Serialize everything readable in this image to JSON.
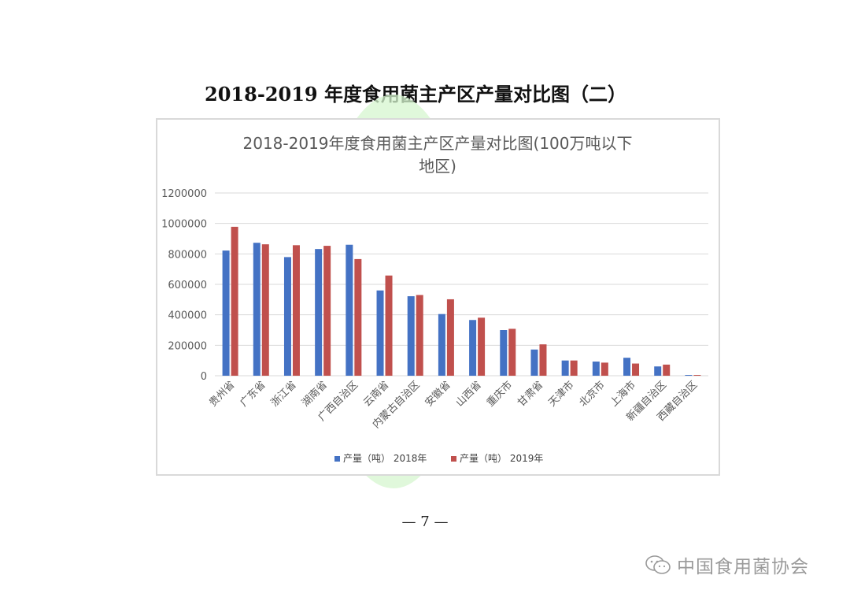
{
  "page": {
    "heading": "2018-2019 年度食用菌主产区产量对比图（二）",
    "page_number": "— 7 —",
    "brand": "中国食用菌协会"
  },
  "colors": {
    "series_2018": "#4472c4",
    "series_2019": "#c0504d",
    "grid": "#d9d9d9",
    "text": "#595959"
  },
  "chart_data": {
    "type": "bar",
    "title_line1": "2018-2019年度食用菌主产区产量对比图(100万吨以下",
    "title_line2": "地区)",
    "categories": [
      "贵州省",
      "广东省",
      "浙江省",
      "湖南省",
      "广西自治区",
      "云南省",
      "内蒙古自治区",
      "安徽省",
      "山西省",
      "重庆市",
      "甘肃省",
      "天津市",
      "北京市",
      "上海市",
      "新疆自治区",
      "西藏自治区"
    ],
    "series": [
      {
        "name": "产量（吨） 2018年",
        "values": [
          822000,
          873000,
          779000,
          832000,
          860000,
          560000,
          522000,
          405000,
          366000,
          300000,
          172000,
          100000,
          93000,
          118000,
          61000,
          5000
        ]
      },
      {
        "name": "产量（吨） 2019年",
        "values": [
          978000,
          863000,
          857000,
          853000,
          766000,
          658000,
          530000,
          502000,
          381000,
          308000,
          206000,
          100000,
          86000,
          80000,
          73000,
          5000
        ]
      }
    ],
    "ylim": [
      0,
      1200000
    ],
    "yticks": [
      0,
      200000,
      400000,
      600000,
      800000,
      1000000,
      1200000
    ],
    "grid": true,
    "legend_position": "bottom"
  }
}
